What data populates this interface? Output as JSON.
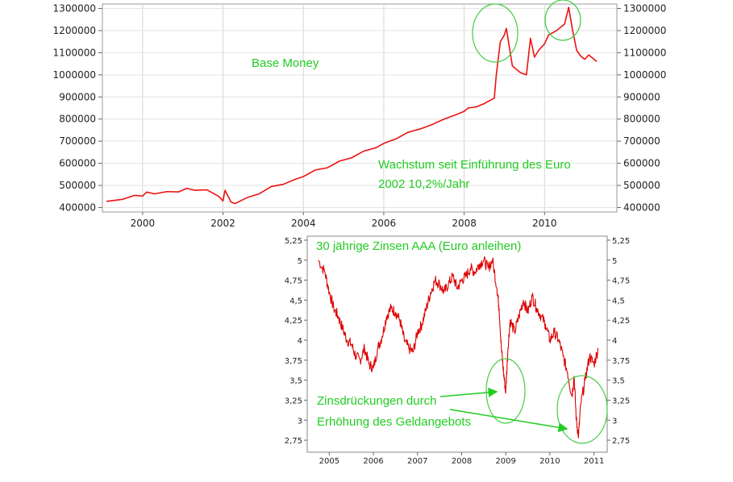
{
  "chart_data": [
    {
      "type": "line",
      "title": "",
      "xlabel": "",
      "ylabel": "",
      "xlim": [
        1999.0,
        2011.8
      ],
      "ylim": [
        380000,
        1320000
      ],
      "x_ticks": [
        "2000",
        "2002",
        "2004",
        "2006",
        "2008",
        "2010"
      ],
      "y_ticks": [
        "400000",
        "500000",
        "600000",
        "700000",
        "800000",
        "900000",
        "1000000",
        "1100000",
        "1200000",
        "1300000"
      ],
      "grid": true,
      "series": [
        {
          "color": "#ee1111",
          "x": [
            1999.1,
            1999.5,
            1999.8,
            2000.0,
            2000.1,
            2000.3,
            2000.6,
            2000.9,
            2001.1,
            2001.3,
            2001.6,
            2001.9,
            2002.0,
            2002.05,
            2002.2,
            2002.3,
            2002.6,
            2002.9,
            2003.2,
            2003.5,
            2003.8,
            2004.0,
            2004.3,
            2004.6,
            2004.9,
            2005.2,
            2005.5,
            2005.8,
            2006.0,
            2006.3,
            2006.6,
            2006.9,
            2007.2,
            2007.5,
            2007.8,
            2008.0,
            2008.1,
            2008.3,
            2008.5,
            2008.75,
            2008.8,
            2008.9,
            2009.0,
            2009.05,
            2009.2,
            2009.4,
            2009.55,
            2009.65,
            2009.75,
            2009.85,
            2010.0,
            2010.1,
            2010.3,
            2010.5,
            2010.6,
            2010.7,
            2010.8,
            2010.9,
            2011.0,
            2011.1,
            2011.2,
            2011.3
          ],
          "values": [
            428000,
            437000,
            455000,
            452000,
            470000,
            462000,
            472000,
            471000,
            487000,
            478000,
            480000,
            450000,
            430000,
            478000,
            425000,
            418000,
            445000,
            462000,
            495000,
            505000,
            528000,
            540000,
            570000,
            580000,
            610000,
            625000,
            655000,
            670000,
            690000,
            710000,
            740000,
            755000,
            775000,
            800000,
            820000,
            835000,
            850000,
            855000,
            870000,
            895000,
            1000000,
            1150000,
            1180000,
            1210000,
            1040000,
            1010000,
            1000000,
            1165000,
            1080000,
            1110000,
            1140000,
            1180000,
            1200000,
            1230000,
            1305000,
            1200000,
            1110000,
            1085000,
            1070000,
            1090000,
            1075000,
            1060000
          ]
        }
      ],
      "annotations": [
        "Base Money",
        "Wachstum seit Einführung des Euro",
        "2002    10,2%/Jahr"
      ]
    },
    {
      "type": "line",
      "title": "30 jährige Zinsen AAA (Euro anleihen)",
      "xlabel": "",
      "ylabel": "",
      "xlim": [
        2004.5,
        2011.3
      ],
      "ylim": [
        2.6,
        5.3
      ],
      "x_ticks": [
        "2005",
        "2006",
        "2007",
        "2008",
        "2009",
        "2010",
        "2011"
      ],
      "y_ticks": [
        "2,75",
        "3",
        "3,25",
        "3,5",
        "3,75",
        "4",
        "4,25",
        "4,5",
        "4,75",
        "5",
        "5,25"
      ],
      "grid": false,
      "series": [
        {
          "color": "#dd0000",
          "x": [
            2004.75,
            2004.9,
            2005.0,
            2005.1,
            2005.2,
            2005.3,
            2005.4,
            2005.5,
            2005.6,
            2005.7,
            2005.8,
            2005.9,
            2006.0,
            2006.1,
            2006.2,
            2006.3,
            2006.4,
            2006.5,
            2006.6,
            2006.7,
            2006.8,
            2006.9,
            2007.0,
            2007.1,
            2007.2,
            2007.3,
            2007.4,
            2007.5,
            2007.6,
            2007.7,
            2007.8,
            2007.9,
            2008.0,
            2008.1,
            2008.2,
            2008.3,
            2008.4,
            2008.5,
            2008.6,
            2008.7,
            2008.8,
            2008.85,
            2008.9,
            2008.95,
            2009.0,
            2009.05,
            2009.1,
            2009.2,
            2009.3,
            2009.4,
            2009.5,
            2009.6,
            2009.7,
            2009.8,
            2009.9,
            2010.0,
            2010.1,
            2010.2,
            2010.3,
            2010.4,
            2010.5,
            2010.55,
            2010.6,
            2010.65,
            2010.7,
            2010.8,
            2010.9,
            2011.0,
            2011.1
          ],
          "values": [
            5.0,
            4.85,
            4.6,
            4.4,
            4.3,
            4.15,
            4.0,
            3.95,
            3.8,
            3.75,
            3.9,
            3.7,
            3.65,
            3.9,
            4.05,
            4.3,
            4.4,
            4.35,
            4.25,
            4.0,
            3.9,
            3.85,
            4.1,
            4.2,
            4.4,
            4.6,
            4.75,
            4.7,
            4.6,
            4.7,
            4.8,
            4.65,
            4.75,
            4.8,
            4.9,
            4.85,
            4.95,
            5.0,
            4.9,
            5.0,
            4.65,
            4.4,
            3.9,
            3.6,
            3.35,
            3.9,
            4.25,
            4.1,
            4.3,
            4.5,
            4.35,
            4.55,
            4.4,
            4.3,
            4.2,
            4.0,
            4.1,
            4.0,
            3.8,
            3.6,
            3.3,
            3.55,
            3.0,
            2.8,
            3.2,
            3.5,
            3.8,
            3.7,
            3.9
          ]
        }
      ],
      "annotations": [
        "Zinsdrückungen durch",
        "Erhöhung des Geldangebots"
      ]
    }
  ]
}
